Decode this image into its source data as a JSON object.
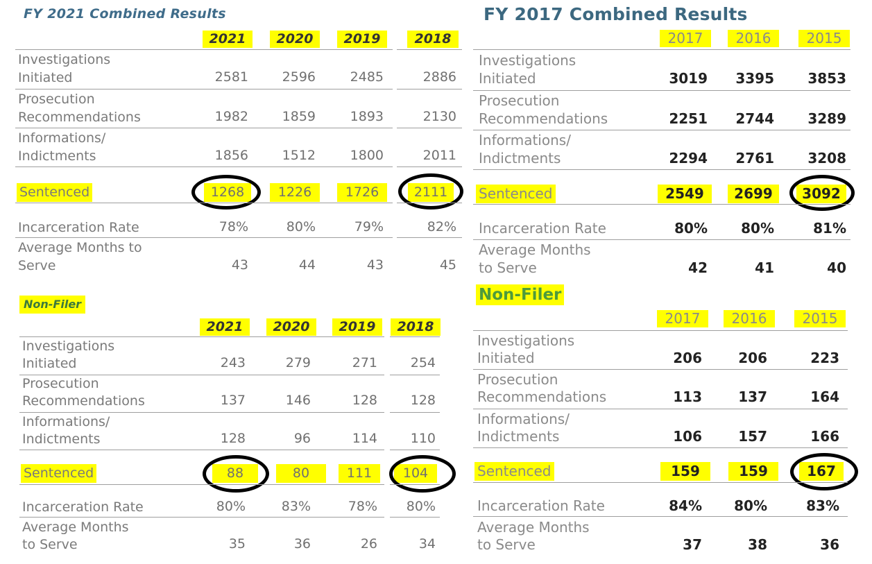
{
  "left": {
    "title": "FY 2021 Combined Results",
    "years": [
      "2021",
      "2020",
      "2019",
      "2018"
    ],
    "rows": {
      "investigations": {
        "label1": "Investigations",
        "label2": "Initiated",
        "values": [
          "2581",
          "2596",
          "2485",
          "2886"
        ]
      },
      "prosecution": {
        "label1": "Prosecution",
        "label2": "Recommendations",
        "values": [
          "1982",
          "1859",
          "1893",
          "2130"
        ]
      },
      "informations": {
        "label1": "Informations/",
        "label2": "Indictments",
        "values": [
          "1856",
          "1512",
          "1800",
          "2011"
        ]
      },
      "sentenced": {
        "label": "Sentenced",
        "values": [
          "1268",
          "1226",
          "1726",
          "2111"
        ]
      },
      "incarceration": {
        "label": "Incarceration Rate",
        "values": [
          "78%",
          "80%",
          "79%",
          "82%"
        ]
      },
      "months": {
        "label1": "Average Months to",
        "label2": "Serve",
        "values": [
          "43",
          "44",
          "43",
          "45"
        ]
      }
    },
    "nonfiler": {
      "title": "Non-Filer",
      "years": [
        "2021",
        "2020",
        "2019",
        "2018"
      ],
      "rows": {
        "investigations": {
          "label1": "Investigations",
          "label2": "Initiated",
          "values": [
            "243",
            "279",
            "271",
            "254"
          ]
        },
        "prosecution": {
          "label1": "Prosecution",
          "label2": "Recommendations",
          "values": [
            "137",
            "146",
            "128",
            "128"
          ]
        },
        "informations": {
          "label1": "Informations/",
          "label2": "Indictments",
          "values": [
            "128",
            "96",
            "114",
            "110"
          ]
        },
        "sentenced": {
          "label": "Sentenced",
          "values": [
            "88",
            "80",
            "111",
            "104"
          ]
        },
        "incarceration": {
          "label": "Incarceration Rate",
          "values": [
            "80%",
            "83%",
            "78%",
            "80%"
          ]
        },
        "months": {
          "label1": "Average Months",
          "label2": "to Serve",
          "values": [
            "35",
            "36",
            "26",
            "34"
          ]
        }
      }
    }
  },
  "right": {
    "title": "FY 2017 Combined Results",
    "years": [
      "2017",
      "2016",
      "2015"
    ],
    "rows": {
      "investigations": {
        "label1": "Investigations",
        "label2": "Initiated",
        "values": [
          "3019",
          "3395",
          "3853"
        ]
      },
      "prosecution": {
        "label1": "Prosecution",
        "label2": "Recommendations",
        "values": [
          "2251",
          "2744",
          "3289"
        ]
      },
      "informations": {
        "label1": "Informations/",
        "label2": "Indictments",
        "values": [
          "2294",
          "2761",
          "3208"
        ]
      },
      "sentenced": {
        "label": "Sentenced",
        "values": [
          "2549",
          "2699",
          "3092"
        ]
      },
      "incarceration": {
        "label": "Incarceration Rate",
        "values": [
          "80%",
          "80%",
          "81%"
        ]
      },
      "months": {
        "label1": "Average Months",
        "label2": "to Serve",
        "values": [
          "42",
          "41",
          "40"
        ]
      }
    },
    "nonfiler": {
      "title": "Non-Filer",
      "years": [
        "2017",
        "2016",
        "2015"
      ],
      "rows": {
        "investigations": {
          "label1": "Investigations",
          "label2": "Initiated",
          "values": [
            "206",
            "206",
            "223"
          ]
        },
        "prosecution": {
          "label1": "Prosecution",
          "label2": "Recommendations",
          "values": [
            "113",
            "137",
            "164"
          ]
        },
        "informations": {
          "label1": "Informations/",
          "label2": "Indictments",
          "values": [
            "106",
            "157",
            "166"
          ]
        },
        "sentenced": {
          "label": "Sentenced",
          "values": [
            "159",
            "159",
            "167"
          ]
        },
        "incarceration": {
          "label": "Incarceration Rate",
          "values": [
            "84%",
            "80%",
            "83%"
          ]
        },
        "months": {
          "label1": "Average Months",
          "label2": "to Serve",
          "values": [
            "37",
            "38",
            "36"
          ]
        }
      }
    }
  },
  "colors": {
    "highlight": "#ffff00",
    "left_title": "#3f6c8a",
    "right_title": "#3c6880",
    "nonfiler_text": "#4e9b3b",
    "circle": "#000000"
  }
}
